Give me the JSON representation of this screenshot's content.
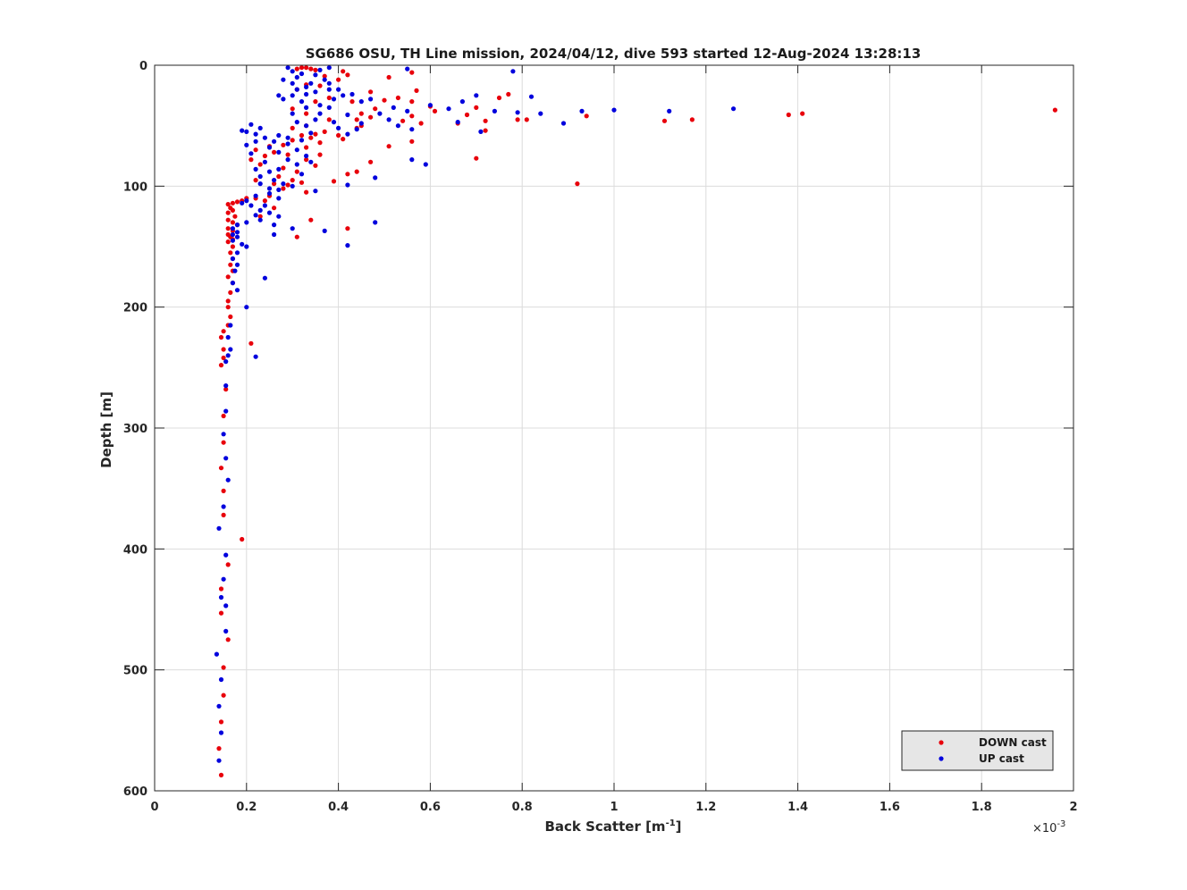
{
  "chart_data": {
    "type": "scatter",
    "title": "SG686 OSU, TH Line mission, 2024/04/12, dive 593 started 12-Aug-2024 13:28:13",
    "xlabel_main": "Back Scatter [m",
    "xlabel_sup": "-1",
    "xlabel_end": "]",
    "ylabel": "Depth [m]",
    "x_multiplier_base": "×10",
    "x_multiplier_exp": "-3",
    "xlim": [
      0,
      2
    ],
    "ylim": [
      0,
      600
    ],
    "y_reversed": true,
    "grid": true,
    "legend_position": "bottom-right",
    "x_ticks": [
      0,
      0.2,
      0.4,
      0.6,
      0.8,
      1,
      1.2,
      1.4,
      1.6,
      1.8,
      2
    ],
    "x_tick_labels": [
      "0",
      "0.2",
      "0.4",
      "0.6",
      "0.8",
      "1",
      "1.2",
      "1.4",
      "1.6",
      "1.8",
      "2"
    ],
    "y_ticks": [
      0,
      100,
      200,
      300,
      400,
      500,
      600
    ],
    "y_tick_labels": [
      "0",
      "100",
      "200",
      "300",
      "400",
      "500",
      "600"
    ],
    "series": [
      {
        "name": "DOWN cast",
        "color": "#e8000b",
        "points": [
          [
            0.32,
            2
          ],
          [
            0.33,
            2
          ],
          [
            0.34,
            3
          ],
          [
            0.31,
            3
          ],
          [
            0.35,
            4
          ],
          [
            0.41,
            5
          ],
          [
            0.56,
            6
          ],
          [
            0.42,
            8
          ],
          [
            0.37,
            9
          ],
          [
            0.51,
            10
          ],
          [
            0.57,
            21
          ],
          [
            0.31,
            20
          ],
          [
            0.33,
            16
          ],
          [
            0.47,
            22
          ],
          [
            0.5,
            29
          ],
          [
            0.53,
            27
          ],
          [
            0.56,
            30
          ],
          [
            0.6,
            34
          ],
          [
            0.61,
            38
          ],
          [
            0.45,
            40
          ],
          [
            0.48,
            36
          ],
          [
            0.47,
            43
          ],
          [
            0.77,
            24
          ],
          [
            0.75,
            27
          ],
          [
            0.7,
            35
          ],
          [
            0.68,
            41
          ],
          [
            0.56,
            42
          ],
          [
            0.54,
            46
          ],
          [
            0.72,
            46
          ],
          [
            0.66,
            48
          ],
          [
            0.79,
            45
          ],
          [
            0.94,
            42
          ],
          [
            1.11,
            46
          ],
          [
            1.17,
            45
          ],
          [
            1.38,
            41
          ],
          [
            1.41,
            40
          ],
          [
            1.96,
            37
          ],
          [
            0.81,
            45
          ],
          [
            0.72,
            54
          ],
          [
            0.58,
            48
          ],
          [
            0.45,
            50
          ],
          [
            0.44,
            52
          ],
          [
            0.41,
            61
          ],
          [
            0.4,
            58
          ],
          [
            0.37,
            55
          ],
          [
            0.33,
            50
          ],
          [
            0.3,
            52
          ],
          [
            0.34,
            60
          ],
          [
            0.36,
            64
          ],
          [
            0.33,
            68
          ],
          [
            0.29,
            74
          ],
          [
            0.36,
            74
          ],
          [
            0.33,
            78
          ],
          [
            0.35,
            83
          ],
          [
            0.28,
            85
          ],
          [
            0.31,
            88
          ],
          [
            0.27,
            92
          ],
          [
            0.3,
            95
          ],
          [
            0.32,
            97
          ],
          [
            0.26,
            98
          ],
          [
            0.28,
            102
          ],
          [
            0.29,
            99
          ],
          [
            0.42,
            90
          ],
          [
            0.44,
            88
          ],
          [
            0.39,
            96
          ],
          [
            0.51,
            67
          ],
          [
            0.56,
            63
          ],
          [
            0.7,
            77
          ],
          [
            0.47,
            80
          ],
          [
            0.33,
            105
          ],
          [
            0.25,
            108
          ],
          [
            0.24,
            112
          ],
          [
            0.22,
            110
          ],
          [
            0.2,
            110
          ],
          [
            0.19,
            112
          ],
          [
            0.18,
            113
          ],
          [
            0.17,
            114
          ],
          [
            0.16,
            115
          ],
          [
            0.165,
            118
          ],
          [
            0.17,
            120
          ],
          [
            0.16,
            122
          ],
          [
            0.175,
            125
          ],
          [
            0.16,
            128
          ],
          [
            0.17,
            130
          ],
          [
            0.18,
            132
          ],
          [
            0.16,
            135
          ],
          [
            0.17,
            137
          ],
          [
            0.16,
            140
          ],
          [
            0.165,
            142
          ],
          [
            0.17,
            144
          ],
          [
            0.16,
            146
          ],
          [
            0.17,
            150
          ],
          [
            0.165,
            155
          ],
          [
            0.17,
            160
          ],
          [
            0.165,
            165
          ],
          [
            0.17,
            170
          ],
          [
            0.16,
            175
          ],
          [
            0.17,
            180
          ],
          [
            0.165,
            188
          ],
          [
            0.16,
            195
          ],
          [
            0.16,
            200
          ],
          [
            0.165,
            208
          ],
          [
            0.16,
            215
          ],
          [
            0.15,
            220
          ],
          [
            0.145,
            225
          ],
          [
            0.15,
            235
          ],
          [
            0.15,
            242
          ],
          [
            0.145,
            248
          ],
          [
            0.155,
            268
          ],
          [
            0.15,
            290
          ],
          [
            0.15,
            312
          ],
          [
            0.145,
            333
          ],
          [
            0.15,
            352
          ],
          [
            0.15,
            372
          ],
          [
            0.19,
            392
          ],
          [
            0.16,
            413
          ],
          [
            0.145,
            433
          ],
          [
            0.145,
            453
          ],
          [
            0.16,
            475
          ],
          [
            0.15,
            498
          ],
          [
            0.15,
            521
          ],
          [
            0.145,
            543
          ],
          [
            0.14,
            565
          ],
          [
            0.145,
            587
          ],
          [
            0.21,
            230
          ],
          [
            0.92,
            98
          ],
          [
            0.42,
            135
          ],
          [
            0.34,
            128
          ],
          [
            0.31,
            142
          ],
          [
            0.23,
            125
          ],
          [
            0.26,
            118
          ],
          [
            0.22,
            95
          ],
          [
            0.23,
            82
          ],
          [
            0.21,
            78
          ],
          [
            0.22,
            70
          ],
          [
            0.24,
            75
          ],
          [
            0.26,
            72
          ],
          [
            0.25,
            67
          ],
          [
            0.28,
            66
          ],
          [
            0.3,
            62
          ],
          [
            0.32,
            58
          ],
          [
            0.35,
            57
          ],
          [
            0.38,
            45
          ],
          [
            0.33,
            40
          ],
          [
            0.3,
            36
          ],
          [
            0.35,
            30
          ],
          [
            0.38,
            27
          ],
          [
            0.36,
            17
          ],
          [
            0.4,
            12
          ],
          [
            0.43,
            30
          ],
          [
            0.44,
            45
          ]
        ]
      },
      {
        "name": "UP cast",
        "color": "#0000dd",
        "points": [
          [
            0.29,
            2
          ],
          [
            0.3,
            5
          ],
          [
            0.32,
            7
          ],
          [
            0.31,
            10
          ],
          [
            0.28,
            12
          ],
          [
            0.3,
            15
          ],
          [
            0.33,
            18
          ],
          [
            0.35,
            22
          ],
          [
            0.3,
            25
          ],
          [
            0.27,
            25
          ],
          [
            0.28,
            28
          ],
          [
            0.32,
            30
          ],
          [
            0.36,
            33
          ],
          [
            0.38,
            35
          ],
          [
            0.39,
            28
          ],
          [
            0.41,
            25
          ],
          [
            0.4,
            20
          ],
          [
            0.38,
            15
          ],
          [
            0.37,
            12
          ],
          [
            0.35,
            8
          ],
          [
            0.36,
            4
          ],
          [
            0.38,
            2
          ],
          [
            0.55,
            3
          ],
          [
            0.78,
            5
          ],
          [
            0.43,
            24
          ],
          [
            0.45,
            30
          ],
          [
            0.47,
            28
          ],
          [
            0.52,
            35
          ],
          [
            0.55,
            38
          ],
          [
            0.49,
            40
          ],
          [
            0.51,
            45
          ],
          [
            0.53,
            50
          ],
          [
            0.56,
            53
          ],
          [
            0.6,
            33
          ],
          [
            0.64,
            36
          ],
          [
            0.67,
            30
          ],
          [
            0.7,
            25
          ],
          [
            0.74,
            38
          ],
          [
            0.79,
            39
          ],
          [
            0.82,
            26
          ],
          [
            0.84,
            40
          ],
          [
            0.89,
            48
          ],
          [
            0.93,
            38
          ],
          [
            1.0,
            37
          ],
          [
            1.12,
            38
          ],
          [
            1.26,
            36
          ],
          [
            0.45,
            48
          ],
          [
            0.44,
            53
          ],
          [
            0.42,
            57
          ],
          [
            0.39,
            47
          ],
          [
            0.35,
            45
          ],
          [
            0.33,
            50
          ],
          [
            0.31,
            47
          ],
          [
            0.34,
            56
          ],
          [
            0.32,
            62
          ],
          [
            0.29,
            65
          ],
          [
            0.26,
            63
          ],
          [
            0.24,
            60
          ],
          [
            0.22,
            57
          ],
          [
            0.2,
            55
          ],
          [
            0.19,
            54
          ],
          [
            0.21,
            49
          ],
          [
            0.23,
            52
          ],
          [
            0.25,
            68
          ],
          [
            0.27,
            72
          ],
          [
            0.29,
            78
          ],
          [
            0.31,
            82
          ],
          [
            0.27,
            86
          ],
          [
            0.25,
            88
          ],
          [
            0.23,
            92
          ],
          [
            0.26,
            95
          ],
          [
            0.28,
            98
          ],
          [
            0.3,
            100
          ],
          [
            0.27,
            103
          ],
          [
            0.25,
            106
          ],
          [
            0.22,
            108
          ],
          [
            0.2,
            112
          ],
          [
            0.19,
            114
          ],
          [
            0.21,
            116
          ],
          [
            0.23,
            120
          ],
          [
            0.25,
            122
          ],
          [
            0.27,
            125
          ],
          [
            0.23,
            128
          ],
          [
            0.2,
            130
          ],
          [
            0.18,
            132
          ],
          [
            0.17,
            135
          ],
          [
            0.18,
            138
          ],
          [
            0.17,
            140
          ],
          [
            0.18,
            142
          ],
          [
            0.17,
            145
          ],
          [
            0.19,
            148
          ],
          [
            0.2,
            150
          ],
          [
            0.18,
            155
          ],
          [
            0.17,
            160
          ],
          [
            0.18,
            165
          ],
          [
            0.175,
            170
          ],
          [
            0.24,
            176
          ],
          [
            0.17,
            180
          ],
          [
            0.18,
            186
          ],
          [
            0.2,
            200
          ],
          [
            0.165,
            215
          ],
          [
            0.16,
            225
          ],
          [
            0.165,
            235
          ],
          [
            0.16,
            240
          ],
          [
            0.155,
            245
          ],
          [
            0.22,
            241
          ],
          [
            0.155,
            265
          ],
          [
            0.155,
            286
          ],
          [
            0.15,
            305
          ],
          [
            0.155,
            325
          ],
          [
            0.16,
            343
          ],
          [
            0.15,
            365
          ],
          [
            0.14,
            383
          ],
          [
            0.155,
            405
          ],
          [
            0.15,
            425
          ],
          [
            0.145,
            440
          ],
          [
            0.155,
            447
          ],
          [
            0.155,
            468
          ],
          [
            0.135,
            487
          ],
          [
            0.145,
            508
          ],
          [
            0.14,
            530
          ],
          [
            0.145,
            552
          ],
          [
            0.14,
            575
          ],
          [
            0.48,
            130
          ],
          [
            0.42,
            149
          ],
          [
            0.37,
            137
          ],
          [
            0.59,
            82
          ],
          [
            0.56,
            78
          ],
          [
            0.48,
            93
          ],
          [
            0.42,
            99
          ],
          [
            0.34,
            80
          ],
          [
            0.33,
            75
          ],
          [
            0.32,
            90
          ],
          [
            0.31,
            70
          ],
          [
            0.29,
            60
          ],
          [
            0.27,
            58
          ],
          [
            0.22,
            63
          ],
          [
            0.2,
            66
          ],
          [
            0.21,
            73
          ],
          [
            0.24,
            80
          ],
          [
            0.22,
            86
          ],
          [
            0.23,
            98
          ],
          [
            0.25,
            102
          ],
          [
            0.27,
            110
          ],
          [
            0.24,
            116
          ],
          [
            0.22,
            124
          ],
          [
            0.26,
            132
          ],
          [
            0.26,
            140
          ],
          [
            0.3,
            135
          ],
          [
            0.35,
            104
          ],
          [
            0.4,
            52
          ],
          [
            0.42,
            41
          ],
          [
            0.36,
            40
          ],
          [
            0.33,
            35
          ],
          [
            0.3,
            40
          ],
          [
            0.34,
            15
          ],
          [
            0.31,
            20
          ],
          [
            0.33,
            24
          ],
          [
            0.38,
            20
          ],
          [
            0.71,
            55
          ],
          [
            0.66,
            47
          ]
        ]
      }
    ]
  }
}
